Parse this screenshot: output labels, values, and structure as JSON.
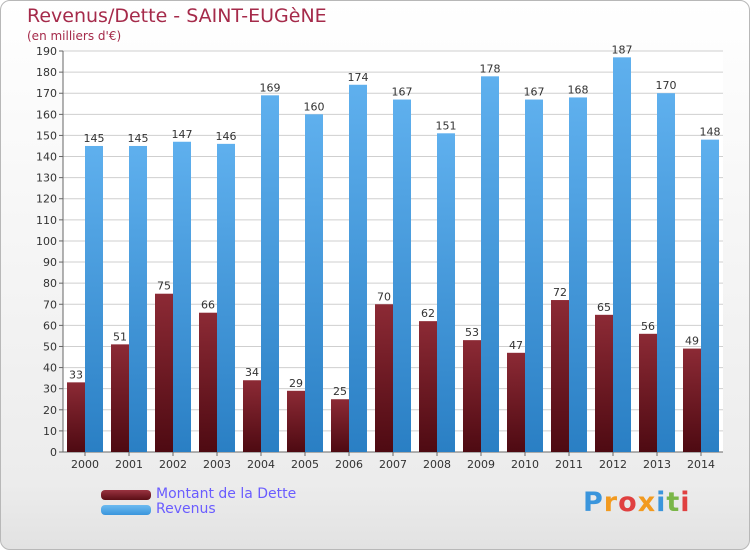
{
  "title": "Revenus/Dette - SAINT-EUGèNE",
  "subtitle": "(en milliers d'€)",
  "brand": "Proxiti",
  "colors": {
    "debt": "#7a1f2b",
    "revenue": "#3a95dc",
    "title": "#a52a4a",
    "legend_text": "#6a5cff"
  },
  "legend": [
    {
      "label": "Montant de la Dette",
      "color": "#5a0e16"
    },
    {
      "label": "Revenus",
      "color": "#3a95dc"
    }
  ],
  "chart_data": {
    "type": "bar",
    "title": "Revenus/Dette - SAINT-EUGèNE",
    "subtitle": "(en milliers d'€)",
    "categories": [
      "2000",
      "2001",
      "2002",
      "2003",
      "2004",
      "2005",
      "2006",
      "2007",
      "2008",
      "2009",
      "2010",
      "2011",
      "2012",
      "2013",
      "2014"
    ],
    "series": [
      {
        "name": "Montant de la Dette",
        "values": [
          33,
          51,
          75,
          66,
          34,
          29,
          25,
          70,
          62,
          53,
          47,
          72,
          65,
          56,
          49
        ]
      },
      {
        "name": "Revenus",
        "values": [
          145,
          145,
          147,
          146,
          169,
          160,
          174,
          167,
          151,
          178,
          167,
          168,
          187,
          170,
          148
        ]
      }
    ],
    "ylim": [
      0,
      190
    ],
    "yticks": [
      0,
      10,
      20,
      30,
      40,
      50,
      60,
      70,
      80,
      90,
      100,
      110,
      120,
      130,
      140,
      150,
      160,
      170,
      180,
      190
    ],
    "grid": true,
    "data_labels": true,
    "legend_position": "bottom-left"
  }
}
